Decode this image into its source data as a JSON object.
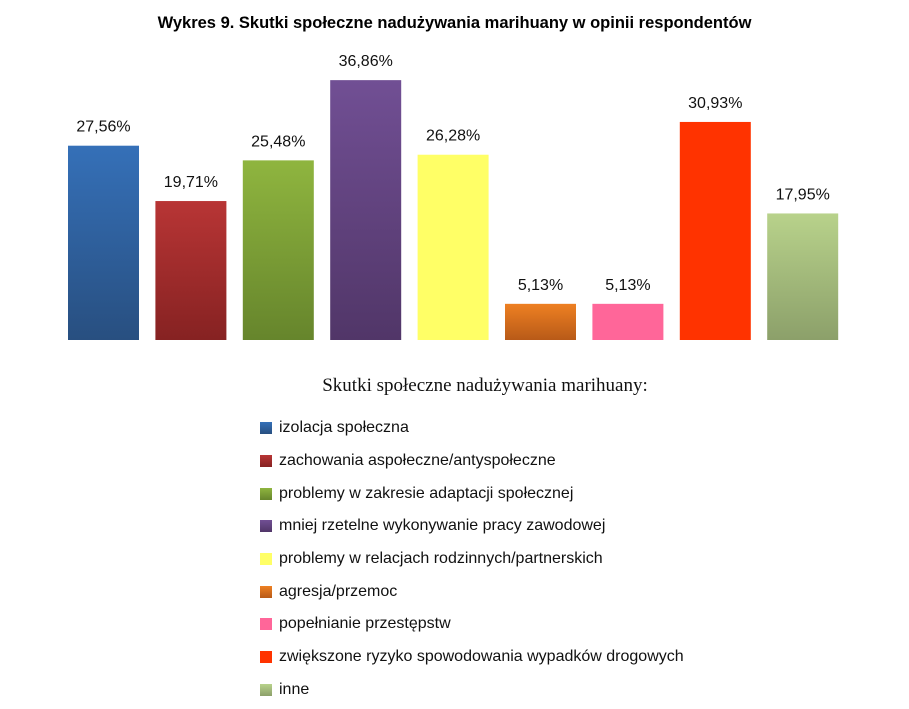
{
  "chart_data": {
    "type": "bar",
    "title": "Wykres 9. Skutki społeczne nadużywania marihuany w opinii respondentów",
    "legend_title": "Skutki społeczne nadużywania marihuany:",
    "legend_position": "bottom",
    "grid": false,
    "ylim": [
      0,
      40
    ],
    "categories": [
      "izolacja społeczna",
      "zachowania aspołeczne/antyspołeczne",
      "problemy w zakresie adaptacji społecznej",
      "mniej rzetelne wykonywanie pracy zawodowej",
      "problemy w relacjach rodzinnych/partnerskich",
      "agresja/przemoc",
      "popełnianie przestępstw",
      "zwiększone ryzyko spowodowania wypadków drogowych",
      "inne"
    ],
    "values": [
      27.56,
      19.71,
      25.48,
      36.86,
      26.28,
      5.13,
      5.13,
      30.93,
      17.95
    ],
    "data_labels": [
      "27,56%",
      "19,71%",
      "25,48%",
      "36,86%",
      "26,28%",
      "5,13%",
      "5,13%",
      "30,93%",
      "17,95%"
    ],
    "colors": [
      [
        "#3570b8",
        "#284f80"
      ],
      [
        "#b83535",
        "#862222"
      ],
      [
        "#8fb53f",
        "#66852c"
      ],
      [
        "#714f94",
        "#513668"
      ],
      [
        "#ffff66",
        "#ffff66"
      ],
      [
        "#ee8022",
        "#b85a18"
      ],
      [
        "#ff6699",
        "#ff6699"
      ],
      [
        "#ff3300",
        "#ff3300"
      ],
      [
        "#b8d28b",
        "#8ca06a"
      ]
    ]
  }
}
